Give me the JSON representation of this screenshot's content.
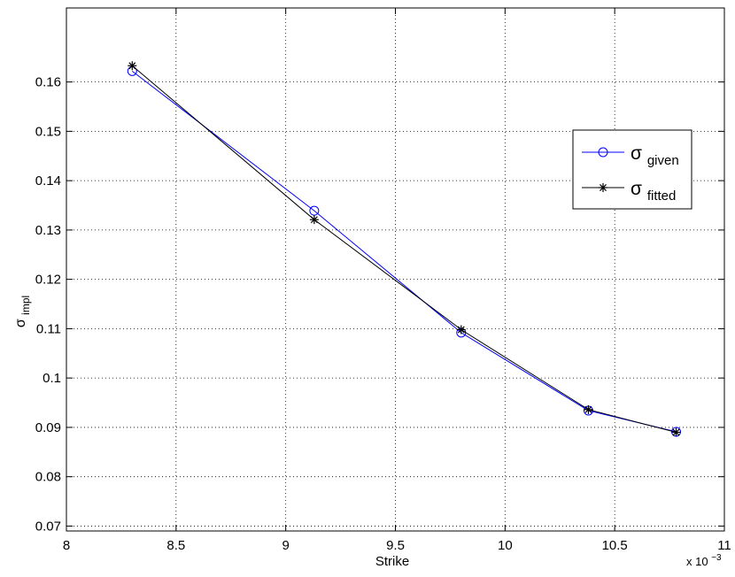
{
  "chart_data": {
    "type": "line",
    "title": "",
    "xlabel": "Strike",
    "ylabel_base": "σ",
    "ylabel_sub": "impl",
    "x_multiplier": {
      "prefix": "x 10",
      "exponent": "−3"
    },
    "xlim": [
      8,
      11
    ],
    "ylim": [
      0.069,
      0.175
    ],
    "xticks": [
      8,
      8.5,
      9,
      9.5,
      10,
      10.5,
      11
    ],
    "xtick_labels": [
      "8",
      "8.5",
      "9",
      "9.5",
      "10",
      "10.5",
      "11"
    ],
    "yticks": [
      0.07,
      0.08,
      0.09,
      0.1,
      0.11,
      0.12,
      0.13,
      0.14,
      0.15,
      0.16
    ],
    "ytick_labels": [
      "0.07",
      "0.08",
      "0.09",
      "0.1",
      "0.11",
      "0.12",
      "0.13",
      "0.14",
      "0.15",
      "0.16"
    ],
    "grid": true,
    "legend_position": "right",
    "series": [
      {
        "name_base": "σ",
        "name_sub": "given",
        "color": "#0000ff",
        "marker": "circle",
        "x": [
          8.3,
          9.13,
          9.8,
          10.38,
          10.78
        ],
        "y": [
          0.1622,
          0.1339,
          0.1092,
          0.0934,
          0.0891
        ]
      },
      {
        "name_base": "σ",
        "name_sub": "fitted",
        "color": "#000000",
        "marker": "star",
        "x": [
          8.3,
          9.13,
          9.8,
          10.38,
          10.78
        ],
        "y": [
          0.1633,
          0.1321,
          0.1098,
          0.0936,
          0.089
        ]
      }
    ]
  }
}
